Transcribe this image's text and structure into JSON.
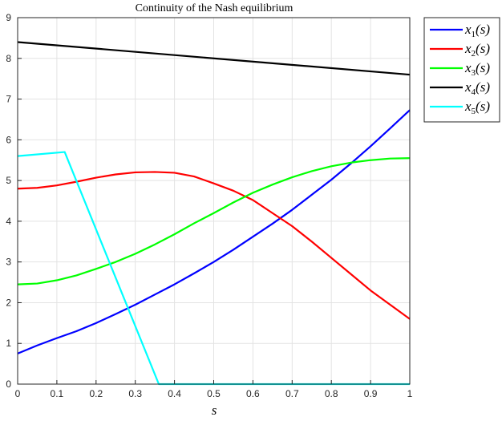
{
  "chart_data": {
    "type": "line",
    "title": "Continuity of the Nash equilibrium",
    "xlabel": "s",
    "ylabel": "",
    "xlim": [
      0,
      1
    ],
    "ylim": [
      0,
      9
    ],
    "grid": true,
    "legend_position": "outside-top-right",
    "xticks": [
      "0",
      "0.1",
      "0.2",
      "0.3",
      "0.4",
      "0.5",
      "0.6",
      "0.7",
      "0.8",
      "0.9",
      "1"
    ],
    "yticks": [
      "0",
      "1",
      "2",
      "3",
      "4",
      "5",
      "6",
      "7",
      "8",
      "9"
    ],
    "x": [
      0,
      0.05,
      0.1,
      0.15,
      0.2,
      0.25,
      0.3,
      0.35,
      0.4,
      0.45,
      0.5,
      0.55,
      0.6,
      0.65,
      0.7,
      0.75,
      0.8,
      0.85,
      0.9,
      0.95,
      1.0
    ],
    "series": [
      {
        "name": "x1(s)",
        "base": "x",
        "sub": "1",
        "color": "#0000ff",
        "x": [
          0,
          0.05,
          0.1,
          0.15,
          0.2,
          0.25,
          0.3,
          0.35,
          0.4,
          0.45,
          0.5,
          0.55,
          0.6,
          0.65,
          0.7,
          0.75,
          0.8,
          0.85,
          0.9,
          0.95,
          1.0
        ],
        "values": [
          0.75,
          0.95,
          1.13,
          1.3,
          1.5,
          1.72,
          1.95,
          2.2,
          2.45,
          2.72,
          3.0,
          3.3,
          3.62,
          3.94,
          4.28,
          4.65,
          5.02,
          5.42,
          5.84,
          6.28,
          6.73
        ]
      },
      {
        "name": "x2(s)",
        "base": "x",
        "sub": "2",
        "color": "#ff0000",
        "x": [
          0,
          0.05,
          0.1,
          0.15,
          0.2,
          0.25,
          0.3,
          0.35,
          0.4,
          0.45,
          0.5,
          0.55,
          0.6,
          0.65,
          0.7,
          0.75,
          0.8,
          0.85,
          0.9,
          0.95,
          1.0
        ],
        "values": [
          4.8,
          4.82,
          4.88,
          4.97,
          5.07,
          5.15,
          5.2,
          5.21,
          5.19,
          5.1,
          4.93,
          4.75,
          4.52,
          4.2,
          3.88,
          3.5,
          3.1,
          2.7,
          2.3,
          1.95,
          1.6
        ]
      },
      {
        "name": "x3(s)",
        "base": "x",
        "sub": "3",
        "color": "#00ff00",
        "x": [
          0,
          0.05,
          0.1,
          0.15,
          0.2,
          0.25,
          0.3,
          0.35,
          0.4,
          0.45,
          0.5,
          0.55,
          0.6,
          0.65,
          0.7,
          0.75,
          0.8,
          0.85,
          0.9,
          0.95,
          1.0
        ],
        "values": [
          2.45,
          2.47,
          2.55,
          2.67,
          2.83,
          3.0,
          3.2,
          3.43,
          3.68,
          3.95,
          4.2,
          4.46,
          4.7,
          4.9,
          5.08,
          5.23,
          5.35,
          5.44,
          5.5,
          5.54,
          5.55
        ]
      },
      {
        "name": "x4(s)",
        "base": "x",
        "sub": "4",
        "color": "#000000",
        "x": [
          0,
          1.0
        ],
        "values": [
          8.4,
          7.6
        ]
      },
      {
        "name": "x5(s)",
        "base": "x",
        "sub": "5",
        "color": "#00ffff",
        "x": [
          0,
          0.12,
          0.36,
          1.0
        ],
        "values": [
          5.6,
          5.7,
          0,
          0
        ]
      }
    ]
  }
}
